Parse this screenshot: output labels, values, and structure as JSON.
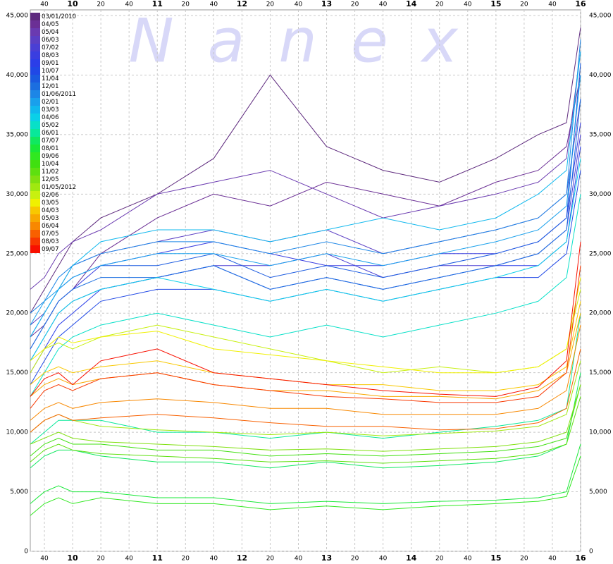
{
  "chart_data": {
    "type": "line",
    "watermark": "Nanex",
    "x": [
      570,
      580,
      590,
      600,
      620,
      660,
      700,
      740,
      780,
      820,
      860,
      900,
      930,
      950,
      960
    ],
    "xlim": [
      570,
      960
    ],
    "xticks": [
      {
        "value": 580,
        "label": "40"
      },
      {
        "value": 600,
        "label": "10"
      },
      {
        "value": 620,
        "label": "20"
      },
      {
        "value": 640,
        "label": "40"
      },
      {
        "value": 660,
        "label": "11"
      },
      {
        "value": 680,
        "label": "20"
      },
      {
        "value": 700,
        "label": "40"
      },
      {
        "value": 720,
        "label": "12"
      },
      {
        "value": 740,
        "label": "20"
      },
      {
        "value": 760,
        "label": "40"
      },
      {
        "value": 780,
        "label": "13"
      },
      {
        "value": 800,
        "label": "20"
      },
      {
        "value": 820,
        "label": "40"
      },
      {
        "value": 840,
        "label": "14"
      },
      {
        "value": 860,
        "label": "20"
      },
      {
        "value": 880,
        "label": "40"
      },
      {
        "value": 900,
        "label": "15"
      },
      {
        "value": 920,
        "label": "20"
      },
      {
        "value": 940,
        "label": "40"
      },
      {
        "value": 960,
        "label": "16"
      }
    ],
    "ylim": [
      0,
      45000
    ],
    "yticks": [
      0,
      {
        "value": 5000,
        "label": "5,000"
      },
      {
        "value": 10000,
        "label": "10,000"
      },
      {
        "value": 15000,
        "label": "15,000"
      },
      {
        "value": 20000,
        "label": "20,000"
      },
      {
        "value": 25000,
        "label": "25,000"
      },
      {
        "value": 30000,
        "label": "30,000"
      },
      {
        "value": 35000,
        "label": "35,000"
      },
      {
        "value": 40000,
        "label": "40,000"
      },
      {
        "value": 45000,
        "label": "45,000"
      }
    ],
    "grid": true,
    "series": [
      {
        "name": "03/01/2010",
        "color": "#5e2a7e",
        "values": [
          20000,
          22000,
          24000,
          26000,
          28000,
          30000,
          33000,
          40000,
          34000,
          32000,
          31000,
          33000,
          35000,
          36000,
          44000
        ]
      },
      {
        "name": "04/05",
        "color": "#6b2f95",
        "values": [
          18000,
          19000,
          21000,
          22000,
          25000,
          28000,
          30000,
          29000,
          31000,
          30000,
          29000,
          31000,
          32000,
          34000,
          40000
        ]
      },
      {
        "name": "05/04",
        "color": "#6a3ab0",
        "values": [
          22000,
          23000,
          25000,
          26000,
          27000,
          30000,
          31000,
          32000,
          30000,
          28000,
          29000,
          30000,
          31000,
          33000,
          42000
        ]
      },
      {
        "name": "06/03",
        "color": "#5b3fc4",
        "values": [
          19000,
          20000,
          22000,
          24000,
          25000,
          26000,
          27000,
          26000,
          27000,
          25000,
          26000,
          27000,
          28000,
          30000,
          38000
        ]
      },
      {
        "name": "07/02",
        "color": "#4a3fd4",
        "values": [
          16000,
          18000,
          20000,
          21000,
          22000,
          23000,
          24000,
          24000,
          25000,
          23000,
          24000,
          24000,
          25000,
          27000,
          35000
        ]
      },
      {
        "name": "08/03",
        "color": "#3a3ee0",
        "values": [
          17000,
          19000,
          21000,
          22000,
          24000,
          25000,
          26000,
          25000,
          24000,
          24000,
          25000,
          25000,
          26000,
          28000,
          36000
        ]
      },
      {
        "name": "09/01",
        "color": "#2b3ee8",
        "values": [
          15000,
          17000,
          19000,
          20000,
          22000,
          23000,
          24000,
          22000,
          23000,
          22000,
          23000,
          24000,
          24000,
          26000,
          34000
        ]
      },
      {
        "name": "10/07",
        "color": "#2048e6",
        "values": [
          14000,
          16000,
          18000,
          19000,
          21000,
          22000,
          22000,
          21000,
          22000,
          21000,
          22000,
          23000,
          23000,
          25000,
          32000
        ]
      },
      {
        "name": "11/04",
        "color": "#1a5ae0",
        "values": [
          18000,
          20000,
          22000,
          23000,
          24000,
          24000,
          25000,
          23000,
          24000,
          23000,
          24000,
          25000,
          26000,
          28000,
          41000
        ]
      },
      {
        "name": "12/01",
        "color": "#1b6ee0",
        "values": [
          17000,
          19000,
          21000,
          22000,
          23000,
          23000,
          24000,
          22000,
          23000,
          22000,
          23000,
          24000,
          25000,
          27000,
          38000
        ]
      },
      {
        "name": "01/06/2011",
        "color": "#1d86e6",
        "values": [
          20000,
          21000,
          23000,
          24000,
          25000,
          26000,
          26000,
          25000,
          26000,
          25000,
          26000,
          27000,
          28000,
          30000,
          43000
        ]
      },
      {
        "name": "02/01",
        "color": "#19a0ec",
        "values": [
          19000,
          21000,
          22000,
          23000,
          24000,
          25000,
          25000,
          24000,
          25000,
          24000,
          25000,
          26000,
          27000,
          29000,
          40000
        ]
      },
      {
        "name": "03/03",
        "color": "#10b8ee",
        "values": [
          18000,
          20000,
          22000,
          24000,
          26000,
          27000,
          27000,
          26000,
          27000,
          28000,
          27000,
          28000,
          30000,
          32000,
          42000
        ]
      },
      {
        "name": "04/06",
        "color": "#0ad0e8",
        "values": [
          16000,
          18000,
          20000,
          21000,
          22000,
          23000,
          22000,
          21000,
          22000,
          21000,
          22000,
          23000,
          24000,
          26000,
          33000
        ]
      },
      {
        "name": "05/02",
        "color": "#08e0c8",
        "values": [
          13000,
          15000,
          17000,
          18000,
          19000,
          20000,
          19000,
          18000,
          19000,
          18000,
          19000,
          20000,
          21000,
          23000,
          30000
        ]
      },
      {
        "name": "06/01",
        "color": "#08e89a",
        "values": [
          9000,
          10000,
          11000,
          11000,
          11000,
          10000,
          10000,
          9500,
          10000,
          9500,
          10000,
          10500,
          11000,
          12000,
          20000
        ]
      },
      {
        "name": "07/07",
        "color": "#10e860",
        "values": [
          7000,
          8000,
          8500,
          8500,
          8000,
          7500,
          7500,
          7000,
          7500,
          7000,
          7200,
          7500,
          8000,
          9000,
          15000
        ]
      },
      {
        "name": "08/01",
        "color": "#18e838",
        "values": [
          4000,
          5000,
          5500,
          5000,
          5000,
          4500,
          4500,
          4000,
          4200,
          4000,
          4200,
          4300,
          4500,
          5000,
          9000
        ]
      },
      {
        "name": "09/06",
        "color": "#30e820",
        "values": [
          3000,
          4000,
          4500,
          4000,
          4500,
          4000,
          4000,
          3500,
          3800,
          3500,
          3800,
          4000,
          4200,
          4600,
          8000
        ]
      },
      {
        "name": "10/04",
        "color": "#40e010",
        "values": [
          8000,
          9000,
          9500,
          9000,
          9000,
          8500,
          8500,
          8000,
          8200,
          8000,
          8200,
          8400,
          8800,
          9500,
          14000
        ]
      },
      {
        "name": "11/02",
        "color": "#5ee010",
        "values": [
          7500,
          8500,
          9000,
          8500,
          8200,
          8000,
          7800,
          7500,
          7600,
          7400,
          7600,
          7800,
          8200,
          9000,
          13000
        ]
      },
      {
        "name": "12/05",
        "color": "#80e010",
        "values": [
          9000,
          9500,
          10000,
          9500,
          9200,
          9000,
          8800,
          8500,
          8600,
          8400,
          8600,
          8800,
          9200,
          10000,
          14000
        ]
      },
      {
        "name": "01/05/2012",
        "color": "#a0e810",
        "values": [
          10000,
          11000,
          11500,
          11000,
          10500,
          10200,
          10000,
          9800,
          10000,
          9700,
          9900,
          10100,
          10500,
          11500,
          16000
        ]
      },
      {
        "name": "02/06",
        "color": "#c8f010",
        "values": [
          15000,
          17000,
          17500,
          17000,
          18000,
          19000,
          18000,
          17000,
          16000,
          15000,
          15500,
          15000,
          15500,
          17000,
          22000
        ]
      },
      {
        "name": "03/05",
        "color": "#f0f000",
        "values": [
          16000,
          17000,
          18000,
          17500,
          18000,
          18500,
          17000,
          16500,
          16000,
          15500,
          15000,
          15000,
          15500,
          17000,
          23000
        ]
      },
      {
        "name": "04/03",
        "color": "#f8c800",
        "values": [
          14000,
          15000,
          15500,
          15000,
          15500,
          16000,
          15000,
          14500,
          14000,
          14000,
          13500,
          13500,
          14000,
          15500,
          21000
        ]
      },
      {
        "name": "05/03",
        "color": "#f8a800",
        "values": [
          13000,
          14000,
          14500,
          14000,
          14500,
          15000,
          14000,
          13500,
          13500,
          13000,
          13000,
          12800,
          13500,
          15000,
          20000
        ]
      },
      {
        "name": "06/04",
        "color": "#f88800",
        "values": [
          11000,
          12000,
          12500,
          12000,
          12500,
          12800,
          12500,
          12000,
          12000,
          11500,
          11500,
          11500,
          12000,
          13500,
          19000
        ]
      },
      {
        "name": "07/05",
        "color": "#f86000",
        "values": [
          10000,
          11000,
          11500,
          11000,
          11200,
          11500,
          11200,
          10800,
          10500,
          10500,
          10200,
          10300,
          10800,
          12000,
          17000
        ]
      },
      {
        "name": "08/03",
        "color": "#f83800",
        "values": [
          12000,
          13500,
          14000,
          13500,
          14500,
          15000,
          14000,
          13500,
          13000,
          12800,
          12500,
          12500,
          13000,
          15000,
          24000
        ]
      },
      {
        "name": "09/07",
        "color": "#f81000",
        "values": [
          13000,
          14500,
          15000,
          14000,
          16000,
          17000,
          15000,
          14500,
          14000,
          13500,
          13200,
          13000,
          13800,
          16000,
          26000
        ]
      }
    ]
  }
}
